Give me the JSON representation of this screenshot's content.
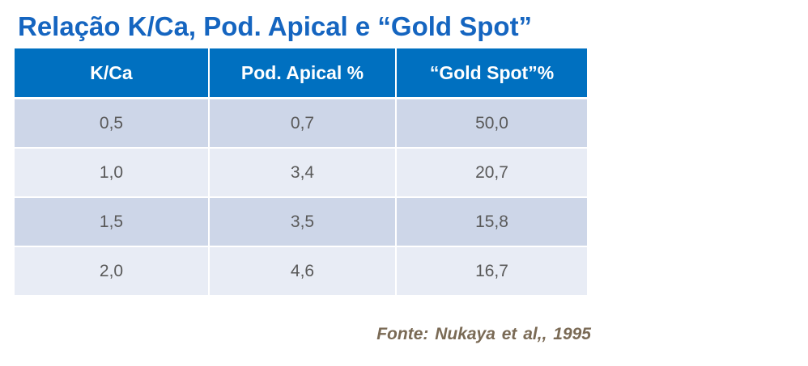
{
  "title": "Relação K/Ca, Pod. Apical e “Gold Spot”",
  "table": {
    "headers": [
      "K/Ca",
      "Pod. Apical %",
      "“Gold Spot”%"
    ],
    "rows": [
      [
        "0,5",
        "0,7",
        "50,0"
      ],
      [
        "1,0",
        "3,4",
        "20,7"
      ],
      [
        "1,5",
        "3,5",
        "15,8"
      ],
      [
        "2,0",
        "4,6",
        "16,7"
      ]
    ]
  },
  "source": "Fonte: Nukaya et al,, 1995",
  "colors": {
    "title": "#1565c0",
    "header_bg": "#0070c0",
    "row_dark": "#cdd6e8",
    "row_light": "#e8ecf5",
    "source": "#7a6a55"
  }
}
